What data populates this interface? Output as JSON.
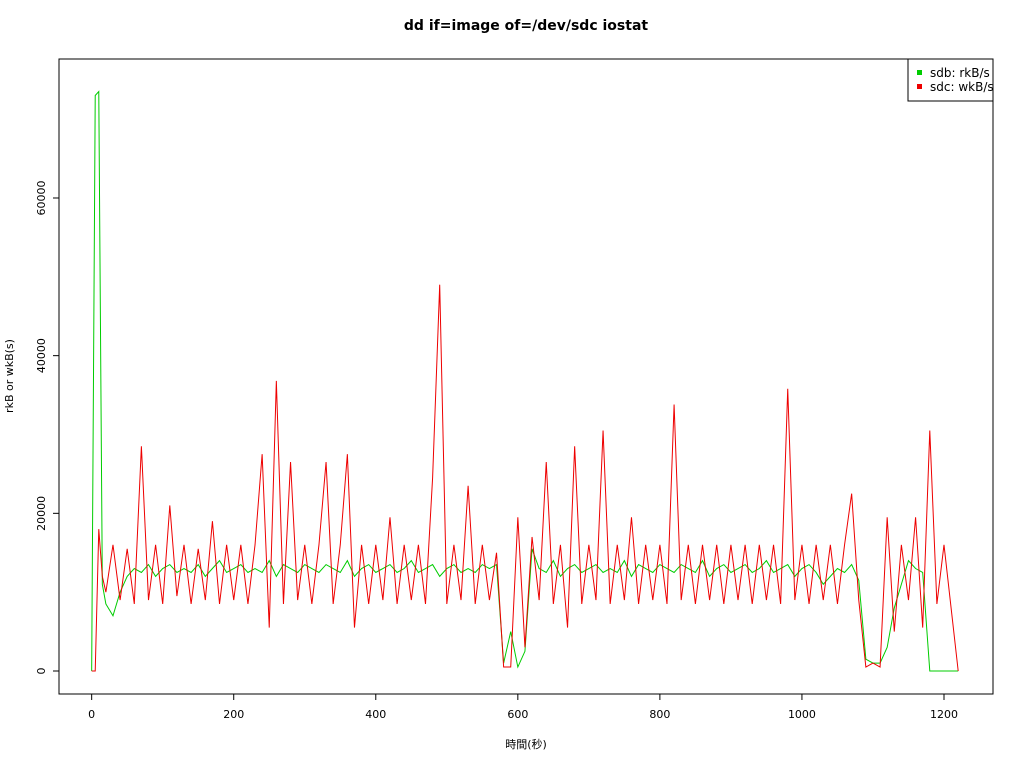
{
  "chart_data": {
    "type": "line",
    "title": "dd if=image of=/dev/sdc iostat",
    "x_label": "時間(秒)",
    "y_label": "rkB or wkB(s)",
    "xlim": [
      -46,
      1269
    ],
    "ylim": [
      -2918,
      77630
    ],
    "xticks": [
      0,
      200,
      400,
      600,
      800,
      1000,
      1200
    ],
    "yticks": [
      0,
      20000,
      40000,
      60000
    ],
    "legend": "top-right",
    "x": [
      0,
      5,
      10,
      15,
      20,
      30,
      40,
      50,
      60,
      70,
      80,
      90,
      100,
      110,
      120,
      130,
      140,
      150,
      160,
      170,
      180,
      190,
      200,
      210,
      220,
      230,
      240,
      250,
      260,
      270,
      280,
      290,
      300,
      310,
      320,
      330,
      340,
      350,
      360,
      370,
      380,
      390,
      400,
      410,
      420,
      430,
      440,
      450,
      460,
      470,
      480,
      490,
      500,
      510,
      520,
      530,
      540,
      550,
      560,
      570,
      580,
      590,
      600,
      610,
      620,
      630,
      640,
      650,
      660,
      670,
      680,
      690,
      700,
      710,
      720,
      730,
      740,
      750,
      760,
      770,
      780,
      790,
      800,
      810,
      820,
      830,
      840,
      850,
      860,
      870,
      880,
      890,
      900,
      910,
      920,
      930,
      940,
      950,
      960,
      970,
      980,
      990,
      1000,
      1010,
      1020,
      1030,
      1040,
      1050,
      1060,
      1070,
      1080,
      1090,
      1100,
      1110,
      1120,
      1130,
      1140,
      1150,
      1160,
      1170,
      1180,
      1190,
      1200,
      1210,
      1220
    ],
    "series": [
      {
        "name": "sdb: rkB/s",
        "color": "#00cc00",
        "values": [
          0,
          73000,
          73500,
          11000,
          8500,
          7000,
          10000,
          12000,
          13000,
          12500,
          13500,
          12000,
          13000,
          13500,
          12500,
          13000,
          12500,
          13500,
          12000,
          13000,
          14000,
          12500,
          13000,
          13500,
          12500,
          13000,
          12500,
          14000,
          12000,
          13500,
          13000,
          12500,
          13500,
          13000,
          12500,
          13500,
          13000,
          12500,
          14000,
          12000,
          13000,
          13500,
          12500,
          13000,
          13500,
          12500,
          13000,
          14000,
          12500,
          13000,
          13500,
          12000,
          13000,
          13500,
          12500,
          13000,
          12500,
          13500,
          13000,
          13500,
          1000,
          5000,
          500,
          2500,
          15500,
          13000,
          12500,
          14000,
          12000,
          13000,
          13500,
          12500,
          13000,
          13500,
          12500,
          13000,
          12500,
          14000,
          12000,
          13500,
          13000,
          12500,
          13500,
          13000,
          12500,
          13500,
          13000,
          12500,
          14000,
          12000,
          13000,
          13500,
          12500,
          13000,
          13500,
          12500,
          13000,
          14000,
          12500,
          13000,
          13500,
          12000,
          13000,
          13500,
          12500,
          11000,
          12000,
          13000,
          12500,
          13500,
          11500,
          1500,
          1000,
          1000,
          3000,
          8000,
          11000,
          14000,
          13000,
          12500,
          0,
          0,
          0,
          0,
          0
        ]
      },
      {
        "name": "sdc: wkB/s",
        "color": "#ee0000",
        "values": [
          0,
          0,
          18000,
          12000,
          10000,
          16000,
          9000,
          15500,
          8500,
          28500,
          9000,
          16000,
          8500,
          21000,
          9500,
          16000,
          8500,
          15500,
          9000,
          19000,
          8500,
          16000,
          9000,
          16000,
          8500,
          16000,
          27500,
          5500,
          36800,
          8500,
          26500,
          9000,
          16000,
          8500,
          16000,
          26500,
          8500,
          16000,
          27500,
          5500,
          16000,
          8500,
          16000,
          9000,
          19500,
          8500,
          16000,
          9000,
          16000,
          8500,
          24500,
          49000,
          8500,
          16000,
          9000,
          23500,
          8500,
          16000,
          9000,
          15000,
          500,
          500,
          19500,
          3000,
          17000,
          9000,
          26500,
          8500,
          16000,
          5500,
          28500,
          8500,
          16000,
          9000,
          30500,
          8500,
          16000,
          9000,
          19500,
          8500,
          16000,
          9000,
          16000,
          8500,
          33800,
          9000,
          16000,
          8500,
          16000,
          9000,
          16000,
          8500,
          16000,
          9000,
          16000,
          8500,
          16000,
          9000,
          16000,
          8500,
          35800,
          9000,
          16000,
          8500,
          16000,
          9000,
          16000,
          8500,
          16000,
          22500,
          9000,
          500,
          1000,
          500,
          19500,
          5000,
          16000,
          9000,
          19500,
          5500,
          30500,
          8500,
          16000,
          8000,
          0
        ]
      }
    ]
  }
}
